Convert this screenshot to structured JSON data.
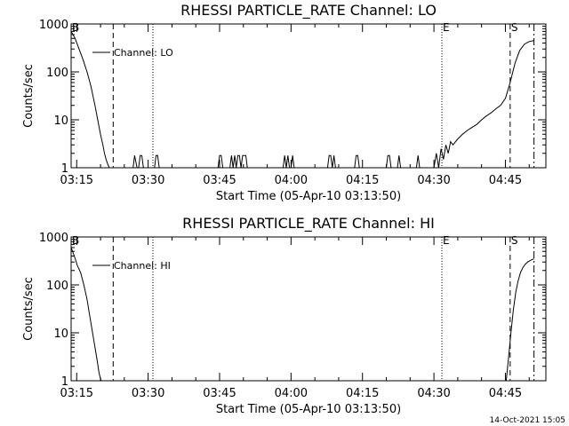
{
  "footer": {
    "timestamp": "14-Oct-2021 15:05"
  },
  "chart_data": [
    {
      "type": "line",
      "title": "RHESSI PARTICLE_RATE Channel: LO",
      "xlabel": "Start Time (05-Apr-10 03:13:50)",
      "ylabel": "Counts/sec",
      "y_scale": "log",
      "ylim": [
        1,
        1000
      ],
      "xlim": [
        "03:13:50",
        "04:53:30"
      ],
      "x_ticks": [
        "03:15",
        "03:30",
        "03:45",
        "04:00",
        "04:15",
        "04:30",
        "04:45"
      ],
      "y_ticks": [
        "1",
        "10",
        "100",
        "1000"
      ],
      "legend": {
        "position": "top-left",
        "entries": [
          "Channel: LO"
        ]
      },
      "markers": [
        {
          "label": "B",
          "time": "03:13:50",
          "style": "dotted"
        },
        {
          "label": "",
          "time": "03:22:40",
          "style": "dashed"
        },
        {
          "label": "",
          "time": "03:31:00",
          "style": "dotted"
        },
        {
          "label": "E",
          "time": "04:31:40",
          "style": "dotted"
        },
        {
          "label": "S",
          "time": "04:46:00",
          "style": "dashed"
        },
        {
          "label": "",
          "time": "04:51:00",
          "style": "dashdot"
        }
      ],
      "series": [
        {
          "x": [
            "03:13:50",
            "03:14:40",
            "03:15:30",
            "03:16:20",
            "03:17:10",
            "03:18:00",
            "03:18:50",
            "03:19:30",
            "03:20:00",
            "03:20:30",
            "03:20:50",
            "03:21:10",
            "03:21:30",
            "03:21:50",
            "03:22:20",
            "03:24:00",
            "03:26:30",
            "03:26:50",
            "03:27:10",
            "03:27:40",
            "03:28:00",
            "03:28:20",
            "03:28:40",
            "03:29:00",
            "03:31:00",
            "03:31:20",
            "03:31:40",
            "03:32:00",
            "03:32:20",
            "03:44:40",
            "03:45:00",
            "03:45:20",
            "03:45:40",
            "03:47:10",
            "03:47:30",
            "03:47:50",
            "03:48:10",
            "03:48:30",
            "03:48:50",
            "03:49:10",
            "03:49:30",
            "03:49:50",
            "03:50:10",
            "03:50:30",
            "03:50:50",
            "03:51:10",
            "03:51:30",
            "03:51:50",
            "03:58:20",
            "03:58:40",
            "03:59:00",
            "03:59:20",
            "03:59:40",
            "04:00:00",
            "04:00:20",
            "04:00:40",
            "04:07:40",
            "04:08:00",
            "04:08:20",
            "04:08:40",
            "04:09:00",
            "04:09:20",
            "04:13:20",
            "04:13:40",
            "04:14:00",
            "04:14:20",
            "04:20:00",
            "04:20:20",
            "04:20:40",
            "04:21:00",
            "04:21:20",
            "04:22:20",
            "04:22:40",
            "04:23:00",
            "04:26:20",
            "04:26:40",
            "04:27:00",
            "04:30:00",
            "04:30:30",
            "04:31:00",
            "04:31:30",
            "04:32:00",
            "04:32:30",
            "04:33:00",
            "04:33:30",
            "04:34:00",
            "04:35:00",
            "04:36:00",
            "04:37:00",
            "04:38:00",
            "04:39:00",
            "04:40:00",
            "04:41:00",
            "04:42:00",
            "04:43:00",
            "04:44:00",
            "04:45:00",
            "04:46:00",
            "04:47:00",
            "04:48:00",
            "04:49:00",
            "04:50:00",
            "04:51:00"
          ],
          "y": [
            700,
            500,
            300,
            180,
            100,
            50,
            20,
            9,
            5,
            3,
            2,
            1.5,
            1.2,
            1,
            1,
            1,
            1,
            1,
            1.8,
            1,
            1,
            1.8,
            1.8,
            1,
            1,
            1,
            1.8,
            1.8,
            1,
            1,
            1.8,
            1.8,
            1,
            1,
            1.8,
            1,
            1.8,
            1,
            1.8,
            1.8,
            1,
            1.8,
            1.8,
            1.8,
            1,
            1,
            1,
            1,
            1,
            1.8,
            1,
            1.8,
            1,
            1,
            1.8,
            1,
            1,
            1.8,
            1.8,
            1,
            1.8,
            1,
            1,
            1.8,
            1.8,
            1,
            1,
            1.8,
            1.8,
            1,
            1,
            1,
            1.8,
            1,
            1,
            1.8,
            1,
            1,
            2,
            1,
            2.5,
            1.5,
            3,
            2,
            3.5,
            3,
            4,
            5,
            6,
            7,
            8,
            10,
            12,
            14,
            17,
            20,
            28,
            60,
            150,
            280,
            380,
            430,
            450
          ]
        }
      ]
    },
    {
      "type": "line",
      "title": "RHESSI PARTICLE_RATE Channel: HI",
      "xlabel": "Start Time (05-Apr-10 03:13:50)",
      "ylabel": "Counts/sec",
      "y_scale": "log",
      "ylim": [
        1,
        1000
      ],
      "xlim": [
        "03:13:50",
        "04:53:30"
      ],
      "x_ticks": [
        "03:15",
        "03:30",
        "03:45",
        "04:00",
        "04:15",
        "04:30",
        "04:45"
      ],
      "y_ticks": [
        "1",
        "10",
        "100",
        "1000"
      ],
      "legend": {
        "position": "top-left",
        "entries": [
          "Channel: HI"
        ]
      },
      "markers": [
        {
          "label": "B",
          "time": "03:13:50",
          "style": "dotted"
        },
        {
          "label": "",
          "time": "03:22:40",
          "style": "dashed"
        },
        {
          "label": "",
          "time": "03:31:00",
          "style": "dotted"
        },
        {
          "label": "E",
          "time": "04:31:40",
          "style": "dotted"
        },
        {
          "label": "S",
          "time": "04:46:00",
          "style": "dashed"
        },
        {
          "label": "",
          "time": "04:51:00",
          "style": "dashdot"
        }
      ],
      "series": [
        {
          "x": [
            "03:13:50",
            "03:14:30",
            "03:15:10",
            "03:15:50",
            "03:16:30",
            "03:17:10",
            "03:17:50",
            "03:18:30",
            "03:19:00",
            "03:19:20",
            "03:19:40",
            "03:20:00",
            "03:20:10",
            "04:45:10",
            "04:45:40",
            "04:46:10",
            "04:46:40",
            "04:47:10",
            "04:47:40",
            "04:48:10",
            "04:48:40",
            "04:49:10",
            "04:49:40",
            "04:50:10",
            "04:50:40",
            "04:51:00"
          ],
          "y": [
            600,
            400,
            250,
            180,
            100,
            50,
            20,
            8,
            4,
            2.5,
            1.5,
            1.1,
            1,
            1,
            3,
            10,
            30,
            70,
            120,
            180,
            230,
            270,
            300,
            320,
            340,
            350
          ]
        }
      ]
    }
  ]
}
